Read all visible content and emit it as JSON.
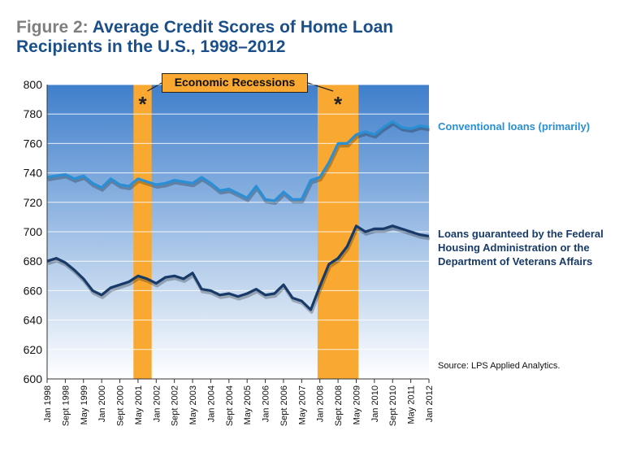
{
  "figure": {
    "number_label": "Figure 2:",
    "title": "Average Credit Scores of Home Loan Recipients in the U.S., 1998–2012"
  },
  "source": "Source: LPS Applied Analytics.",
  "recessions": {
    "label": "Economic Recessions",
    "marker": "*",
    "periods": [
      {
        "start": "2001-03",
        "end": "2001-11"
      },
      {
        "start": "2007-12",
        "end": "2009-06"
      }
    ]
  },
  "colors": {
    "plot_top": "#3f7fcc",
    "plot_bottom": "#ffffff",
    "recession_band": "#f9a832",
    "conventional": "#2a8fd4",
    "fha_va": "#173a69"
  },
  "chart_data": {
    "type": "line",
    "title": "Average Credit Scores of Home Loan Recipients in the U.S., 1998–2012",
    "xlabel": "",
    "ylabel": "",
    "ylim": [
      600,
      800
    ],
    "yticks": [
      600,
      620,
      640,
      660,
      680,
      700,
      720,
      740,
      760,
      780,
      800
    ],
    "xticks": [
      "Jan 1998",
      "Sept 1998",
      "May 1999",
      "Jan 2000",
      "Sept 2000",
      "May 2001",
      "Jan 2002",
      "Sept 2002",
      "May 2003",
      "Jan 2004",
      "Sept 2004",
      "May 2005",
      "Jan 2006",
      "Sept 2006",
      "May 2007",
      "Jan 2008",
      "Sept 2008",
      "May 2009",
      "Jan 2010",
      "Sept 2010",
      "May 2011",
      "Jan 2012"
    ],
    "grid": true,
    "legend": "right",
    "series": [
      {
        "name": "Conventional loans (primarily)",
        "x": [
          "1998-01",
          "1998-05",
          "1998-09",
          "1999-01",
          "1999-05",
          "1999-09",
          "2000-01",
          "2000-05",
          "2000-09",
          "2001-01",
          "2001-05",
          "2001-09",
          "2002-01",
          "2002-05",
          "2002-09",
          "2003-01",
          "2003-05",
          "2003-09",
          "2004-01",
          "2004-05",
          "2004-09",
          "2005-01",
          "2005-05",
          "2005-09",
          "2006-01",
          "2006-05",
          "2006-09",
          "2007-01",
          "2007-05",
          "2007-09",
          "2008-01",
          "2008-05",
          "2008-09",
          "2009-01",
          "2009-05",
          "2009-09",
          "2010-01",
          "2010-05",
          "2010-09",
          "2011-01",
          "2011-05",
          "2011-09",
          "2012-01"
        ],
        "values": [
          737,
          738,
          739,
          736,
          738,
          733,
          730,
          736,
          732,
          731,
          736,
          734,
          732,
          733,
          735,
          734,
          733,
          737,
          733,
          728,
          729,
          726,
          723,
          731,
          722,
          721,
          727,
          722,
          722,
          735,
          737,
          747,
          760,
          760,
          766,
          768,
          766,
          771,
          775,
          771,
          770,
          772,
          771
        ]
      },
      {
        "name": "Loans guaranteed by the Federal Housing Administration or the Department of Veterans Affairs",
        "x": [
          "1998-01",
          "1998-05",
          "1998-09",
          "1999-01",
          "1999-05",
          "1999-09",
          "2000-01",
          "2000-05",
          "2000-09",
          "2001-01",
          "2001-05",
          "2001-09",
          "2002-01",
          "2002-05",
          "2002-09",
          "2003-01",
          "2003-05",
          "2003-09",
          "2004-01",
          "2004-05",
          "2004-09",
          "2005-01",
          "2005-05",
          "2005-09",
          "2006-01",
          "2006-05",
          "2006-09",
          "2007-01",
          "2007-05",
          "2007-09",
          "2008-01",
          "2008-05",
          "2008-09",
          "2009-01",
          "2009-05",
          "2009-09",
          "2010-01",
          "2010-05",
          "2010-09",
          "2011-01",
          "2011-05",
          "2011-09",
          "2012-01"
        ],
        "values": [
          680,
          682,
          679,
          674,
          668,
          660,
          657,
          662,
          664,
          666,
          670,
          668,
          665,
          669,
          670,
          668,
          672,
          661,
          660,
          657,
          658,
          656,
          658,
          661,
          657,
          658,
          664,
          655,
          653,
          647,
          663,
          678,
          682,
          690,
          704,
          700,
          702,
          702,
          704,
          702,
          700,
          698,
          697
        ]
      }
    ]
  }
}
